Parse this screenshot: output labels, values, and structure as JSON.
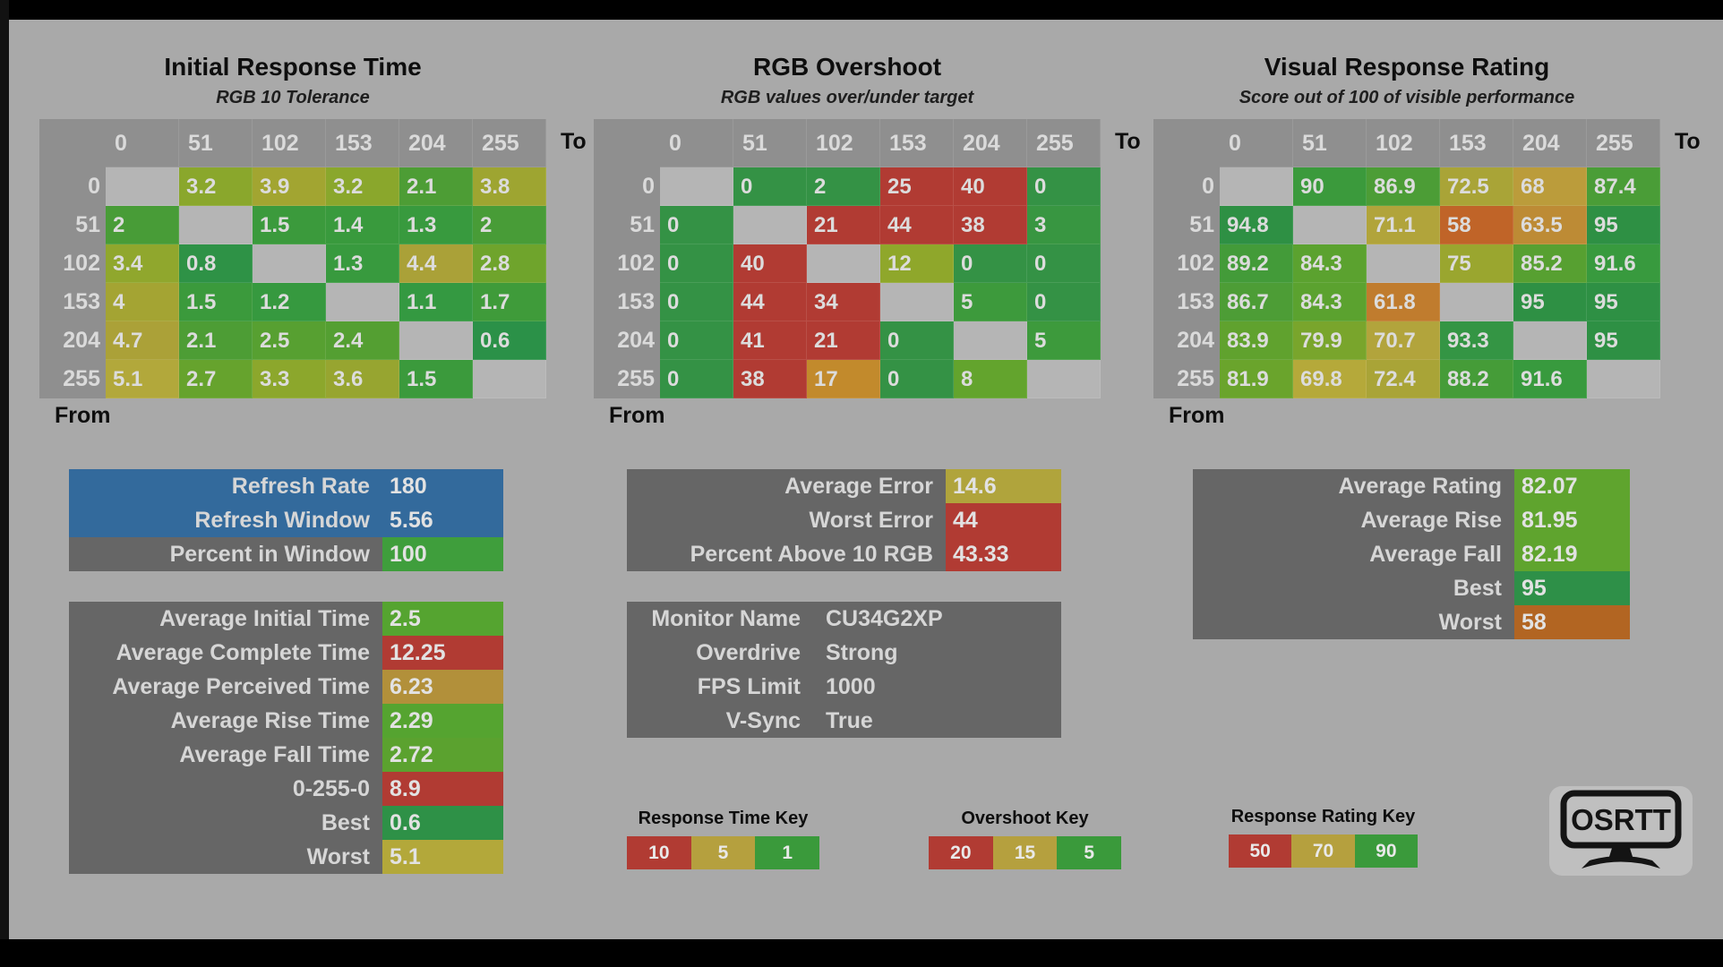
{
  "tables": [
    {
      "title": "Initial Response Time",
      "subtitle": "RGB 10 Tolerance",
      "from_label": "From",
      "to_label": "To",
      "col_headers": [
        "0",
        "51",
        "102",
        "153",
        "204",
        "255"
      ],
      "row_headers": [
        "0",
        "51",
        "102",
        "153",
        "204",
        "255"
      ],
      "rows": [
        [
          null,
          {
            "v": "3.2",
            "c": "#8aa72c"
          },
          {
            "v": "3.9",
            "c": "#a2a531"
          },
          {
            "v": "3.2",
            "c": "#8aa72c"
          },
          {
            "v": "2.1",
            "c": "#4d9d35"
          },
          {
            "v": "3.8",
            "c": "#9ea531"
          }
        ],
        [
          {
            "v": "2",
            "c": "#489c37"
          },
          null,
          {
            "v": "1.5",
            "c": "#3b9a3c"
          },
          {
            "v": "1.4",
            "c": "#399a3d"
          },
          {
            "v": "1.3",
            "c": "#389a3e"
          },
          {
            "v": "2",
            "c": "#489c37"
          }
        ],
        [
          {
            "v": "3.4",
            "c": "#90a72d"
          },
          {
            "v": "0.8",
            "c": "#2e9246"
          },
          null,
          {
            "v": "1.3",
            "c": "#389a3e"
          },
          {
            "v": "4.4",
            "c": "#aaa138"
          },
          {
            "v": "2.8",
            "c": "#6fa42c"
          }
        ],
        [
          {
            "v": "4",
            "c": "#a4a433"
          },
          {
            "v": "1.5",
            "c": "#3b9a3c"
          },
          {
            "v": "1.2",
            "c": "#36993f"
          },
          null,
          {
            "v": "1.1",
            "c": "#349941"
          },
          {
            "v": "1.7",
            "c": "#3f9b3a"
          }
        ],
        [
          {
            "v": "4.7",
            "c": "#aba138"
          },
          {
            "v": "2.1",
            "c": "#4d9d35"
          },
          {
            "v": "2.5",
            "c": "#57a031"
          },
          {
            "v": "2.4",
            "c": "#549f32"
          },
          null,
          {
            "v": "0.6",
            "c": "#2b9148"
          }
        ],
        [
          {
            "v": "5.1",
            "c": "#b2a83b"
          },
          {
            "v": "2.7",
            "c": "#66a32d"
          },
          {
            "v": "3.3",
            "c": "#8ca72c"
          },
          {
            "v": "3.6",
            "c": "#97a530"
          },
          {
            "v": "1.5",
            "c": "#3b9a3c"
          },
          null
        ]
      ]
    },
    {
      "title": "RGB Overshoot",
      "subtitle": "RGB values over/under target",
      "from_label": "From",
      "to_label": "To",
      "col_headers": [
        "0",
        "51",
        "102",
        "153",
        "204",
        "255"
      ],
      "row_headers": [
        "0",
        "51",
        "102",
        "153",
        "204",
        "255"
      ],
      "rows": [
        [
          null,
          {
            "v": "0",
            "c": "#349245"
          },
          {
            "v": "2",
            "c": "#349245"
          },
          {
            "v": "25",
            "c": "#b13b33"
          },
          {
            "v": "40",
            "c": "#b13b33"
          },
          {
            "v": "0",
            "c": "#349245"
          }
        ],
        [
          {
            "v": "0",
            "c": "#349245"
          },
          null,
          {
            "v": "21",
            "c": "#b13b33"
          },
          {
            "v": "44",
            "c": "#b13b33"
          },
          {
            "v": "38",
            "c": "#b13b33"
          },
          {
            "v": "3",
            "c": "#389641"
          }
        ],
        [
          {
            "v": "0",
            "c": "#349245"
          },
          {
            "v": "40",
            "c": "#b13b33"
          },
          null,
          {
            "v": "12",
            "c": "#8fa72b"
          },
          {
            "v": "0",
            "c": "#349245"
          },
          {
            "v": "0",
            "c": "#349245"
          }
        ],
        [
          {
            "v": "0",
            "c": "#349245"
          },
          {
            "v": "44",
            "c": "#b13b33"
          },
          {
            "v": "34",
            "c": "#b13b33"
          },
          null,
          {
            "v": "5",
            "c": "#3d9a3c"
          },
          {
            "v": "0",
            "c": "#349245"
          }
        ],
        [
          {
            "v": "0",
            "c": "#349245"
          },
          {
            "v": "41",
            "c": "#b13b33"
          },
          {
            "v": "21",
            "c": "#b13b33"
          },
          {
            "v": "0",
            "c": "#349245"
          },
          null,
          {
            "v": "5",
            "c": "#3d9a3c"
          }
        ],
        [
          {
            "v": "0",
            "c": "#349245"
          },
          {
            "v": "38",
            "c": "#b13b33"
          },
          {
            "v": "17",
            "c": "#c28a2c"
          },
          {
            "v": "0",
            "c": "#349245"
          },
          {
            "v": "8",
            "c": "#63a42d"
          },
          null
        ]
      ]
    },
    {
      "title": "Visual Response Rating",
      "subtitle": "Score out of 100 of visible performance",
      "from_label": "From",
      "to_label": "To",
      "col_headers": [
        "0",
        "51",
        "102",
        "153",
        "204",
        "255"
      ],
      "row_headers": [
        "0",
        "51",
        "102",
        "153",
        "204",
        "255"
      ],
      "rows": [
        [
          null,
          {
            "v": "90",
            "c": "#3b9a3c"
          },
          {
            "v": "86.9",
            "c": "#4c9d36"
          },
          {
            "v": "72.5",
            "c": "#a9a437"
          },
          {
            "v": "68",
            "c": "#bb9c3b"
          },
          {
            "v": "87.4",
            "c": "#4a9d37"
          }
        ],
        [
          {
            "v": "94.8",
            "c": "#2e9044"
          },
          null,
          {
            "v": "71.1",
            "c": "#b1a43b"
          },
          {
            "v": "58",
            "c": "#c06428"
          },
          {
            "v": "63.5",
            "c": "#bd8b35"
          },
          {
            "v": "95",
            "c": "#2e9044"
          }
        ],
        [
          {
            "v": "89.2",
            "c": "#439b39"
          },
          {
            "v": "84.3",
            "c": "#5ba22f"
          },
          null,
          {
            "v": "75",
            "c": "#9aa62f"
          },
          {
            "v": "85.2",
            "c": "#57a031"
          },
          {
            "v": "91.6",
            "c": "#389a3e"
          }
        ],
        [
          {
            "v": "86.7",
            "c": "#4d9d36"
          },
          {
            "v": "84.3",
            "c": "#5ba22f"
          },
          {
            "v": "61.8",
            "c": "#c07c2e"
          },
          null,
          {
            "v": "95",
            "c": "#2e9044"
          },
          {
            "v": "95",
            "c": "#2e9044"
          }
        ],
        [
          {
            "v": "83.9",
            "c": "#60a22e"
          },
          {
            "v": "79.9",
            "c": "#79a52c"
          },
          {
            "v": "70.7",
            "c": "#b2a43c"
          },
          {
            "v": "93.3",
            "c": "#349544"
          },
          null,
          {
            "v": "95",
            "c": "#2e9044"
          }
        ],
        [
          {
            "v": "81.9",
            "c": "#6aa42c"
          },
          {
            "v": "69.8",
            "c": "#b5a93a"
          },
          {
            "v": "72.4",
            "c": "#a9a437"
          },
          {
            "v": "88.2",
            "c": "#459c38"
          },
          {
            "v": "91.6",
            "c": "#389a3e"
          },
          null
        ]
      ]
    }
  ],
  "panels": [
    {
      "id": "refresh",
      "rows": [
        {
          "label": "Refresh Rate",
          "value": "180",
          "label_bg": "#336a9c",
          "value_bg": "#336a9c"
        },
        {
          "label": "Refresh Window",
          "value": "5.56",
          "label_bg": "#336a9c",
          "value_bg": "#336a9c"
        },
        {
          "label": "Percent in Window",
          "value": "100",
          "label_bg": "#666666",
          "value_bg": "#3f9e3c"
        }
      ]
    },
    {
      "id": "times",
      "rows": [
        {
          "label": "Average Initial Time",
          "value": "2.5",
          "value_bg": "#55a430"
        },
        {
          "label": "Average Complete Time",
          "value": "12.25",
          "value_bg": "#b13b33"
        },
        {
          "label": "Average Perceived Time",
          "value": "6.23",
          "value_bg": "#b2903a"
        },
        {
          "label": "Average Rise Time",
          "value": "2.29",
          "value_bg": "#55a430"
        },
        {
          "label": "Average Fall Time",
          "value": "2.72",
          "value_bg": "#5ba22f"
        },
        {
          "label": "0-255-0",
          "value": "8.9",
          "value_bg": "#b13b33"
        },
        {
          "label": "Best",
          "value": "0.6",
          "value_bg": "#2e9147"
        },
        {
          "label": "Worst",
          "value": "5.1",
          "value_bg": "#b3a83a"
        }
      ]
    },
    {
      "id": "error",
      "rows": [
        {
          "label": "Average Error",
          "value": "14.6",
          "value_bg": "#b0a43c"
        },
        {
          "label": "Worst Error",
          "value": "44",
          "value_bg": "#b13b33"
        },
        {
          "label": "Percent Above 10 RGB",
          "value": "43.33",
          "value_bg": "#b13b33"
        }
      ]
    },
    {
      "id": "monitor",
      "rows": [
        {
          "label": "Monitor Name",
          "value": "CU34G2XP"
        },
        {
          "label": "Overdrive",
          "value": "Strong"
        },
        {
          "label": "FPS Limit",
          "value": "1000"
        },
        {
          "label": "V-Sync",
          "value": "True"
        }
      ]
    },
    {
      "id": "rating",
      "rows": [
        {
          "label": "Average Rating",
          "value": "82.07",
          "value_bg": "#5fa42e"
        },
        {
          "label": "Average Rise",
          "value": "81.95",
          "value_bg": "#5fa42e"
        },
        {
          "label": "Average Fall",
          "value": "82.19",
          "value_bg": "#5fa42e"
        },
        {
          "label": "Best",
          "value": "95",
          "value_bg": "#2e9048"
        },
        {
          "label": "Worst",
          "value": "58",
          "value_bg": "#b26522"
        }
      ]
    }
  ],
  "keys": [
    {
      "title": "Response Time Key",
      "cells": [
        {
          "v": "10",
          "c": "#b13b33"
        },
        {
          "v": "5",
          "c": "#b5a03e"
        },
        {
          "v": "1",
          "c": "#3a9a3b"
        }
      ]
    },
    {
      "title": "Overshoot Key",
      "cells": [
        {
          "v": "20",
          "c": "#b13b33"
        },
        {
          "v": "15",
          "c": "#b5a03e"
        },
        {
          "v": "5",
          "c": "#3a9a3b"
        }
      ]
    },
    {
      "title": "Response Rating Key",
      "cells": [
        {
          "v": "50",
          "c": "#b13b33"
        },
        {
          "v": "70",
          "c": "#b5a03e"
        },
        {
          "v": "90",
          "c": "#3a9a3b"
        }
      ]
    }
  ],
  "logo": {
    "text": "OSRTT"
  }
}
